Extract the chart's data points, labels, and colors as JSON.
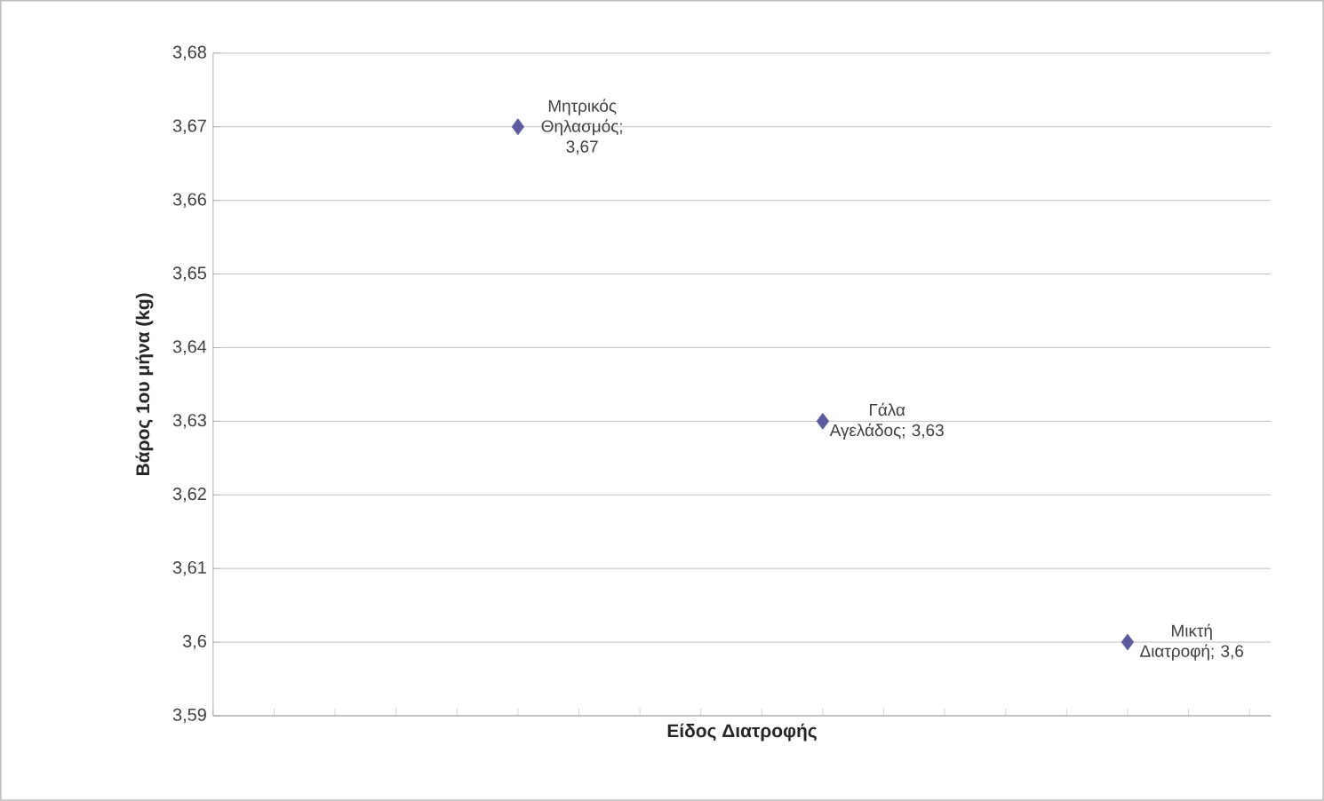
{
  "chart_data": {
    "type": "scatter",
    "ylabel": "Βάρος 1ου μήνα (kg)",
    "xlabel": "Είδος Διατροφής",
    "categories": [
      null,
      null,
      null
    ],
    "values": [
      3.67,
      3.63,
      3.6
    ],
    "value_labels": [
      "Μητρικός Θηλασμός; 3,67",
      "Γάλα Αγελάδος; 3,63",
      "Μικτή Διατροφή; 3,6"
    ],
    "color": "#5b5b9e",
    "marker": "diamond",
    "ylim": [
      3.59,
      3.68
    ],
    "yticks": [
      {
        "value": 3.59,
        "label": "3,59"
      },
      {
        "value": 3.6,
        "label": "3,6"
      },
      {
        "value": 3.61,
        "label": "3,61"
      },
      {
        "value": 3.62,
        "label": "3,62"
      },
      {
        "value": 3.63,
        "label": "3,63"
      },
      {
        "value": 3.64,
        "label": "3,64"
      },
      {
        "value": 3.65,
        "label": "3,65"
      },
      {
        "value": 3.66,
        "label": "3,66"
      },
      {
        "value": 3.67,
        "label": "3,67"
      },
      {
        "value": 3.68,
        "label": "3,68"
      }
    ],
    "grid": "y",
    "tick_labels": "y"
  }
}
